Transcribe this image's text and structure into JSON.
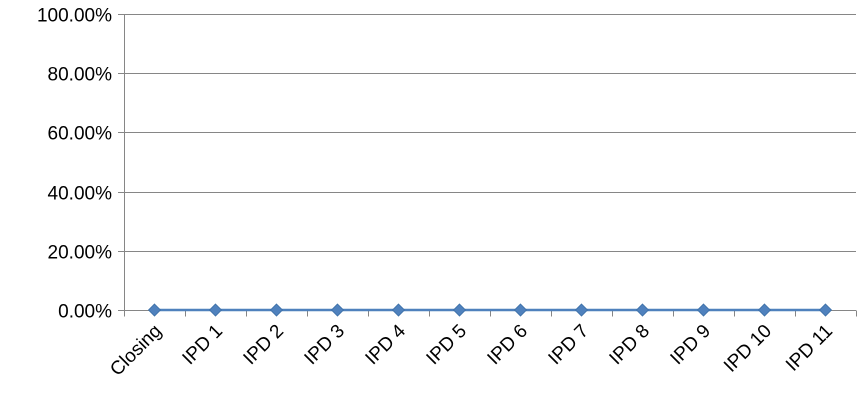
{
  "chart_data": {
    "type": "line",
    "title": "",
    "xlabel": "",
    "ylabel": "",
    "categories": [
      "Closing",
      "IPD 1",
      "IPD 2",
      "IPD 3",
      "IPD 4",
      "IPD 5",
      "IPD 6",
      "IPD 7",
      "IPD 8",
      "IPD 9",
      "IPD 10",
      "IPD 11"
    ],
    "series": [
      {
        "values": [
          0,
          0,
          0,
          0,
          0,
          0,
          0,
          0,
          0,
          0,
          0,
          0
        ],
        "color": "#4F81BD",
        "marker": "diamond"
      }
    ],
    "ylim": [
      0,
      1
    ],
    "yticks": [
      0,
      0.2,
      0.4,
      0.6,
      0.8,
      1.0
    ],
    "ytick_labels": [
      "0.00%",
      "20.00%",
      "40.00%",
      "60.00%",
      "80.00%",
      "100.00%"
    ],
    "grid": true,
    "legend": "none",
    "gridline_color": "#868686",
    "axis_color": "#868686"
  }
}
